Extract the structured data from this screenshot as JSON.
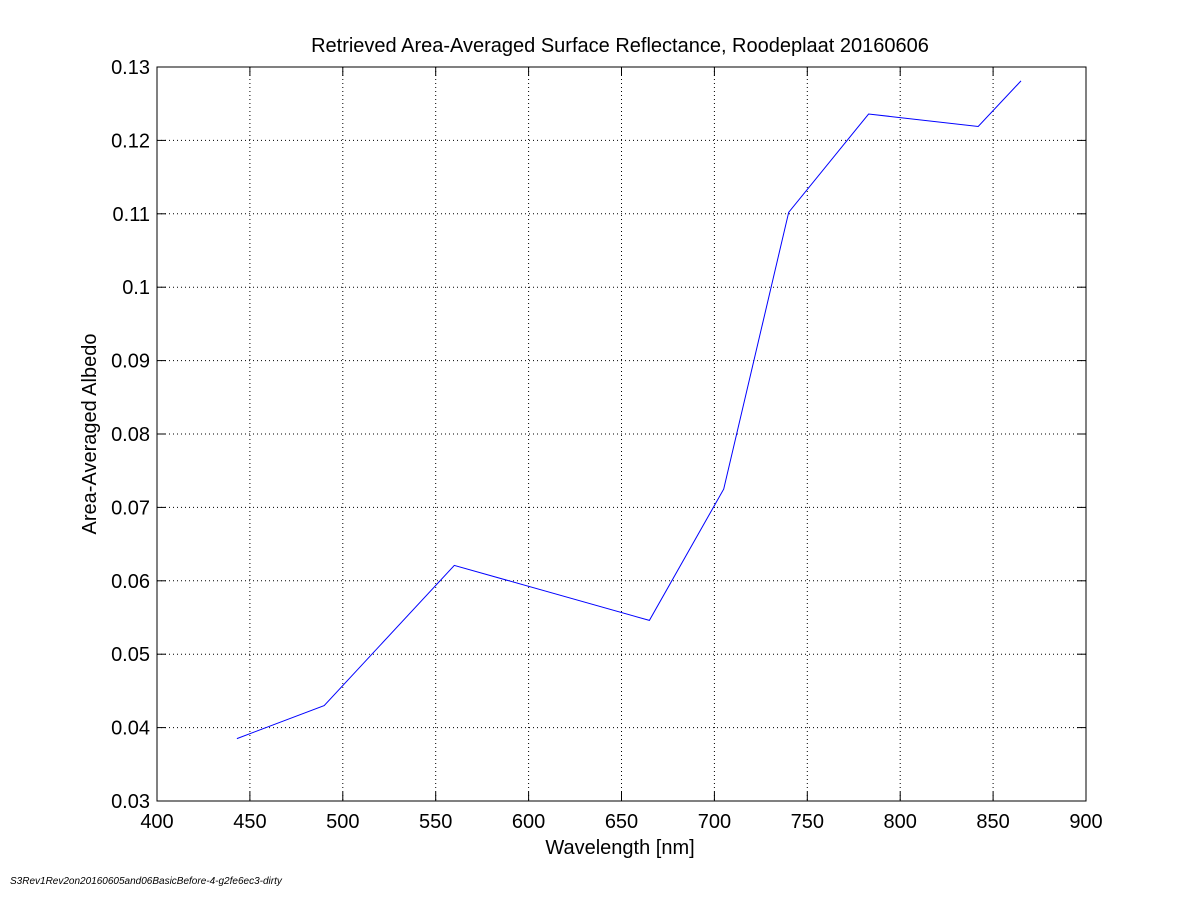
{
  "chart_data": {
    "type": "line",
    "title": "Retrieved Area-Averaged Surface Reflectance, Roodeplaat 20160606",
    "xlabel": "Wavelength [nm]",
    "ylabel": "Area-Averaged Albedo",
    "xlim": [
      400,
      900
    ],
    "ylim": [
      0.03,
      0.13
    ],
    "xticks": [
      400,
      450,
      500,
      550,
      600,
      650,
      700,
      750,
      800,
      850,
      900
    ],
    "xtick_labels": [
      "400",
      "450",
      "500",
      "550",
      "600",
      "650",
      "700",
      "750",
      "800",
      "850",
      "900"
    ],
    "yticks": [
      0.03,
      0.04,
      0.05,
      0.06,
      0.07,
      0.08,
      0.09,
      0.1,
      0.11,
      0.12,
      0.13
    ],
    "ytick_labels": [
      "0.03",
      "0.04",
      "0.05",
      "0.06",
      "0.07",
      "0.08",
      "0.09",
      "0.1",
      "0.11",
      "0.12",
      "0.13"
    ],
    "grid": true,
    "grid_style": "dotted",
    "series_color": "#0000ff",
    "series": [
      {
        "x": [
          443,
          490,
          560,
          665,
          705,
          740,
          783,
          842,
          865
        ],
        "y": [
          0.0385,
          0.043,
          0.0621,
          0.0546,
          0.0725,
          0.1102,
          0.1236,
          0.1219,
          0.1281
        ]
      }
    ]
  },
  "footer": {
    "note": "S3Rev1Rev2on20160605and06BasicBefore-4-g2fe6ec3-dirty"
  }
}
